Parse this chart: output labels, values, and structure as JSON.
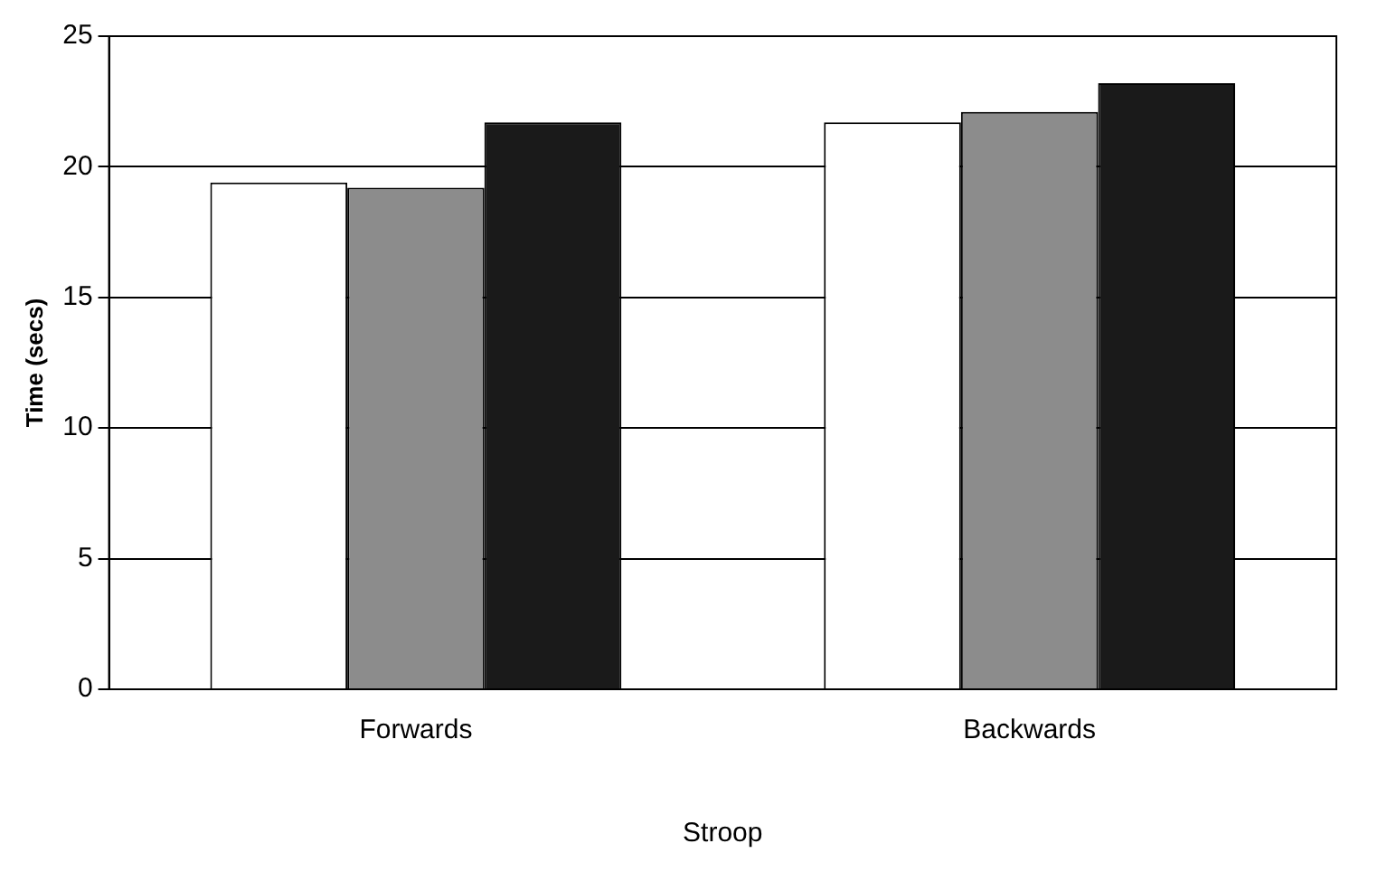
{
  "chart_data": {
    "type": "bar",
    "xlabel": "Stroop",
    "ylabel": "Time (secs)",
    "categories": [
      "Forwards",
      "Backwards"
    ],
    "series": [
      {
        "color": "#ffffff",
        "values": [
          19.4,
          21.7
        ]
      },
      {
        "color": "#8c8c8c",
        "values": [
          19.2,
          22.1
        ]
      },
      {
        "color": "#1a1a1a",
        "values": [
          21.7,
          23.2
        ]
      }
    ],
    "ylim": [
      0,
      25
    ],
    "yticks": [
      0,
      5,
      10,
      15,
      20,
      25
    ],
    "grid": "y",
    "legend": false
  }
}
